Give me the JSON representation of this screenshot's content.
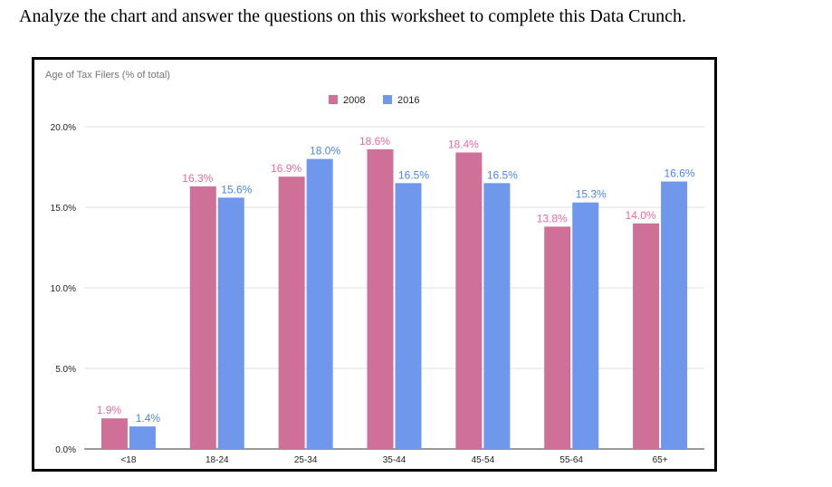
{
  "instruction": "Analyze the chart and answer the questions on this worksheet to complete this Data Crunch.",
  "chart_data": {
    "type": "bar",
    "title": "Age of Tax Filers (% of total)",
    "categories": [
      "<18",
      "18-24",
      "25-34",
      "35-44",
      "45-54",
      "55-64",
      "65+"
    ],
    "series": [
      {
        "name": "2008",
        "color": "#cf7099",
        "label_color": "#e36c9e",
        "values": [
          1.9,
          16.3,
          16.9,
          18.6,
          18.4,
          13.8,
          14.0
        ],
        "labels": [
          "1.9%",
          "16.3%",
          "16.9%",
          "18.6%",
          "18.4%",
          "13.8%",
          "14.0%"
        ]
      },
      {
        "name": "2016",
        "color": "#6f98ec",
        "label_color": "#4a86e8",
        "values": [
          1.4,
          15.6,
          18.0,
          16.5,
          16.5,
          15.3,
          16.6
        ],
        "labels": [
          "1.4%",
          "15.6%",
          "18.0%",
          "16.5%",
          "16.5%",
          "15.3%",
          "16.6%"
        ]
      }
    ],
    "ylim": [
      0,
      20
    ],
    "yticks": [
      0,
      5,
      10,
      15,
      20
    ],
    "ytick_labels": [
      "0.0%",
      "5.0%",
      "10.0%",
      "15.0%",
      "20.0%"
    ],
    "legend_position": "top",
    "grid": true
  }
}
